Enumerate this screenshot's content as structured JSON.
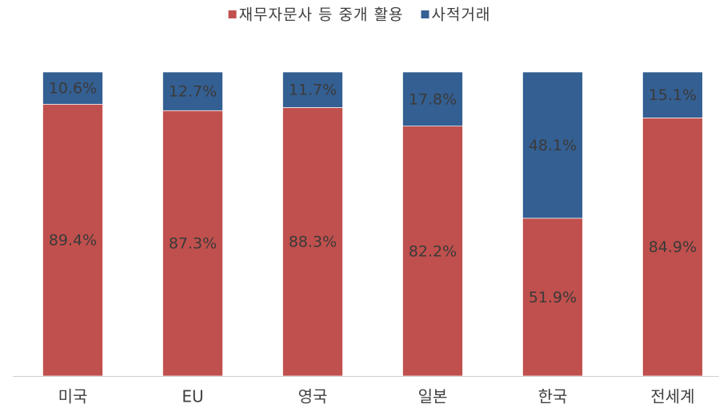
{
  "chart_data": {
    "type": "stacked_bar",
    "categories": [
      "미국",
      "EU",
      "영국",
      "일본",
      "한국",
      "전세계"
    ],
    "series": [
      {
        "name": "재무자문사 등 중개 활용",
        "color": "#c0504d",
        "values": [
          89.4,
          87.3,
          88.3,
          82.2,
          51.9,
          84.9
        ],
        "value_labels": [
          "89.4%",
          "87.3%",
          "88.3%",
          "82.2%",
          "51.9%",
          "84.9%"
        ]
      },
      {
        "name": "사적거래",
        "color": "#345f92",
        "values": [
          10.6,
          12.7,
          11.7,
          17.8,
          48.1,
          15.1
        ],
        "value_labels": [
          "10.6%",
          "12.7%",
          "11.7%",
          "17.8%",
          "48.1%",
          "15.1%"
        ]
      }
    ],
    "ylim": [
      0,
      100
    ],
    "legend": "top"
  }
}
